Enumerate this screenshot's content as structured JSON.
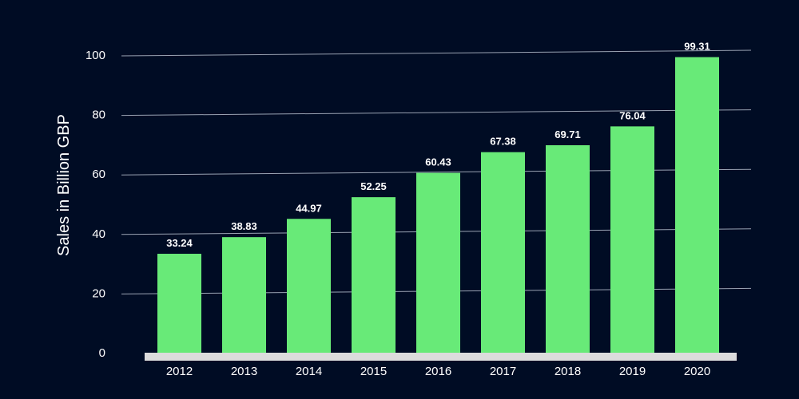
{
  "chart_data": {
    "type": "bar",
    "categories": [
      "2012",
      "2013",
      "2014",
      "2015",
      "2016",
      "2017",
      "2018",
      "2019",
      "2020"
    ],
    "values": [
      33.24,
      38.83,
      44.97,
      52.25,
      60.43,
      67.38,
      69.71,
      76.04,
      99.31
    ],
    "value_labels": [
      "33.24",
      "38.83",
      "44.97",
      "52.25",
      "60.43",
      "67.38",
      "69.71",
      "76.04",
      "99.31"
    ],
    "title": "",
    "xlabel": "",
    "ylabel": "Sales in Billion GBP",
    "ylim": [
      0,
      100
    ],
    "yticks": [
      "0",
      "20",
      "40",
      "60",
      "80",
      "100"
    ],
    "grid": true,
    "colors": {
      "background": "#000c24",
      "bar": "#68ea78",
      "grid": "#9aa3b3",
      "baseline": "#dcdcdc",
      "text": "#ffffff"
    }
  }
}
